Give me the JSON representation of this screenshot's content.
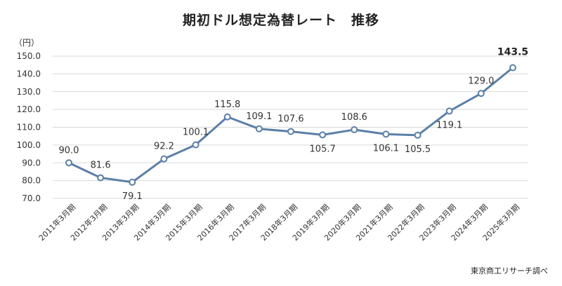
{
  "chart_data": {
    "type": "line",
    "title": "期初ドル想定為替レート　推移",
    "ylabel": "（円）",
    "source": "東京商工リサーチ調べ",
    "ylim": [
      70,
      150
    ],
    "yticks": [
      "70.0",
      "80.0",
      "90.0",
      "100.0",
      "110.0",
      "120.0",
      "130.0",
      "140.0",
      "150.0"
    ],
    "grid": true,
    "categories": [
      "2011年3月期",
      "2012年3月期",
      "2013年3月期",
      "2014年3月期",
      "2015年3月期",
      "2016年3月期",
      "2017年3月期",
      "2018年3月期",
      "2019年3月期",
      "2020年3月期",
      "2021年3月期",
      "2022年3月期",
      "2023年3月期",
      "2024年3月期",
      "2025年3月期"
    ],
    "values": [
      90.0,
      81.6,
      79.1,
      92.2,
      100.1,
      115.8,
      109.1,
      107.6,
      105.7,
      108.6,
      106.1,
      105.5,
      119.1,
      129.0,
      143.5
    ],
    "labels": [
      "90.0",
      "81.6",
      "79.1",
      "92.2",
      "100.1",
      "115.8",
      "109.1",
      "107.6",
      "105.7",
      "108.6",
      "106.1",
      "105.5",
      "119.1",
      "129.0",
      "143.5"
    ],
    "label_positions": [
      "above",
      "above",
      "below",
      "above",
      "above",
      "above",
      "above",
      "above",
      "below",
      "above",
      "below",
      "below",
      "below",
      "above",
      "above"
    ],
    "line_color": "#5B7FA8"
  }
}
